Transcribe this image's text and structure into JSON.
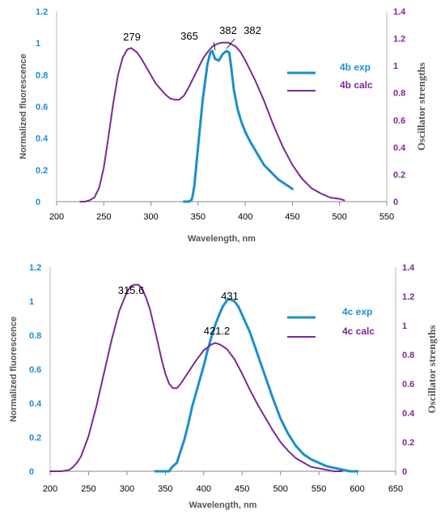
{
  "chart_data": [
    {
      "type": "line",
      "xlabel": "Wavelength, nm",
      "ylabel": "Normalized fluorescence",
      "y2label": "Oscillator strengths",
      "xlim": [
        200,
        550
      ],
      "ylim": [
        0,
        1.2
      ],
      "y2lim": [
        0,
        1.4
      ],
      "xticks": [
        "200",
        "250",
        "300",
        "350",
        "400",
        "450",
        "500",
        "550"
      ],
      "yticks": [
        "0",
        "0.2",
        "0.4",
        "0.6",
        "0.8",
        "1",
        "1.2"
      ],
      "y2ticks": [
        "0",
        "0.2",
        "0.4",
        "0.6",
        "0.8",
        "1",
        "1.2",
        "1.4"
      ],
      "grid": false,
      "legend_position": "right",
      "series": [
        {
          "name": "4b exp",
          "axis": "left",
          "color": "#1a8fd0",
          "x": [
            335,
            340,
            343,
            344,
            346,
            350,
            355,
            360,
            363,
            365,
            368,
            372,
            376,
            380,
            383,
            385,
            388,
            392,
            396,
            400,
            405,
            410,
            415,
            420,
            425,
            430,
            435,
            440,
            445,
            450
          ],
          "y": [
            0.0,
            0.0,
            0.01,
            0.03,
            0.1,
            0.35,
            0.65,
            0.87,
            0.94,
            0.95,
            0.9,
            0.89,
            0.93,
            0.95,
            0.94,
            0.85,
            0.7,
            0.58,
            0.5,
            0.44,
            0.38,
            0.33,
            0.28,
            0.23,
            0.2,
            0.17,
            0.14,
            0.12,
            0.1,
            0.08
          ]
        },
        {
          "name": "4b calc",
          "axis": "right",
          "color": "#7a2a96",
          "x": [
            225,
            230,
            235,
            240,
            245,
            250,
            255,
            260,
            265,
            270,
            275,
            279,
            285,
            290,
            295,
            300,
            305,
            310,
            315,
            320,
            325,
            330,
            335,
            340,
            345,
            350,
            355,
            360,
            365,
            370,
            375,
            382,
            390,
            395,
            400,
            410,
            420,
            430,
            440,
            450,
            460,
            470,
            480,
            490,
            500,
            505
          ],
          "y": [
            0.0,
            0.0,
            0.01,
            0.03,
            0.1,
            0.25,
            0.48,
            0.72,
            0.93,
            1.06,
            1.12,
            1.13,
            1.1,
            1.05,
            0.99,
            0.93,
            0.87,
            0.83,
            0.79,
            0.76,
            0.75,
            0.75,
            0.78,
            0.84,
            0.91,
            0.98,
            1.05,
            1.1,
            1.14,
            1.16,
            1.17,
            1.17,
            1.14,
            1.1,
            1.04,
            0.9,
            0.74,
            0.56,
            0.4,
            0.27,
            0.17,
            0.1,
            0.06,
            0.03,
            0.02,
            0.01
          ]
        }
      ],
      "annotations": [
        "279",
        "365",
        "382",
        "382"
      ]
    },
    {
      "type": "line",
      "xlabel": "Wavelength, nm",
      "ylabel": "Normalized fluorescence",
      "y2label": "Oscillator strengths",
      "xlim": [
        200,
        650
      ],
      "ylim": [
        0,
        1.2
      ],
      "y2lim": [
        0,
        1.4
      ],
      "xticks": [
        "200",
        "250",
        "300",
        "350",
        "400",
        "450",
        "500",
        "550",
        "600",
        "650"
      ],
      "yticks": [
        "0",
        "0.2",
        "0.4",
        "0.6",
        "0.8",
        "1",
        "1.2"
      ],
      "y2ticks": [
        "0",
        "0.2",
        "0.4",
        "0.6",
        "0.8",
        "1",
        "1.2",
        "1.4"
      ],
      "grid": false,
      "legend_position": "right",
      "series": [
        {
          "name": "4c exp",
          "axis": "left",
          "color": "#1a8fd0",
          "x": [
            337,
            355,
            358,
            360,
            365,
            370,
            375,
            380,
            385,
            390,
            395,
            400,
            405,
            410,
            415,
            420,
            425,
            431,
            435,
            440,
            445,
            450,
            460,
            470,
            480,
            490,
            500,
            510,
            520,
            530,
            540,
            550,
            560,
            570,
            580,
            590,
            600
          ],
          "y": [
            0.0,
            0.0,
            0.02,
            0.03,
            0.05,
            0.12,
            0.19,
            0.28,
            0.38,
            0.46,
            0.54,
            0.62,
            0.71,
            0.79,
            0.86,
            0.92,
            0.97,
            1.01,
            1.01,
            1.0,
            0.97,
            0.92,
            0.82,
            0.69,
            0.56,
            0.43,
            0.31,
            0.22,
            0.15,
            0.1,
            0.07,
            0.05,
            0.03,
            0.02,
            0.01,
            0.0,
            0.0
          ]
        },
        {
          "name": "4c calc",
          "axis": "right",
          "color": "#7a2a96",
          "x": [
            200,
            215,
            225,
            230,
            235,
            240,
            250,
            260,
            270,
            280,
            290,
            300,
            305,
            310,
            315,
            320,
            325,
            330,
            335,
            340,
            345,
            350,
            355,
            360,
            365,
            370,
            380,
            390,
            400,
            410,
            415,
            421,
            430,
            440,
            450,
            460,
            470,
            480,
            490,
            500,
            510,
            520,
            530,
            540,
            550,
            560,
            570,
            580
          ],
          "y": [
            0.0,
            0.0,
            0.01,
            0.03,
            0.06,
            0.1,
            0.24,
            0.44,
            0.67,
            0.9,
            1.1,
            1.23,
            1.27,
            1.28,
            1.28,
            1.25,
            1.19,
            1.11,
            1.0,
            0.89,
            0.77,
            0.67,
            0.6,
            0.57,
            0.57,
            0.6,
            0.68,
            0.76,
            0.83,
            0.87,
            0.88,
            0.87,
            0.84,
            0.77,
            0.67,
            0.56,
            0.46,
            0.37,
            0.28,
            0.2,
            0.14,
            0.09,
            0.06,
            0.03,
            0.02,
            0.01,
            0.0,
            0.0
          ]
        }
      ],
      "annotations": [
        "315.6",
        "421.2",
        "431"
      ]
    }
  ]
}
